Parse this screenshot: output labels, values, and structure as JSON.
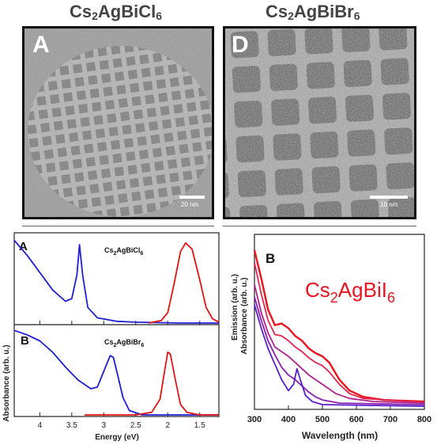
{
  "top": {
    "left": {
      "title_main": "Cs",
      "title_sub1": "2",
      "title_mid": "AgBiCl",
      "title_sub2": "6",
      "panel_letter": "A",
      "scalebar_label": "20 nm"
    },
    "right": {
      "title_main": "Cs",
      "title_sub1": "2",
      "title_mid": "AgBiBr",
      "title_sub2": "6",
      "panel_letter": "D",
      "scalebar_label": "10 nm"
    }
  },
  "bottom_left": {
    "ylabel": "Absorbance (arb. u.)",
    "xlabel": "Energy (eV)",
    "panel_A": {
      "letter": "A",
      "label_main": "Cs",
      "label_sub1": "2",
      "label_mid": "AgBiCl",
      "label_sub2": "6"
    },
    "panel_B": {
      "letter": "B",
      "label_main": "Cs",
      "label_sub1": "2",
      "label_mid": "AgBiBr",
      "label_sub2": "6"
    },
    "colors": {
      "absorbance": "#1f1fd6",
      "emission": "#e01414"
    }
  },
  "bottom_right": {
    "letter": "B",
    "ylabel_emission": "Emission (arb. u.)",
    "ylabel_absorbance": "Absorbance (arb. u.)",
    "xlabel": "Wavelength (nm)",
    "compound": {
      "main": "Cs",
      "sub1": "2",
      "mid": "AgBiI",
      "sub2": "6",
      "color": "#e8141e"
    }
  },
  "chart_data": [
    {
      "type": "line",
      "panel": "A",
      "xlabel": "Energy (eV)",
      "xlim": [
        4.4,
        1.2
      ],
      "xticks": [
        "4",
        "3.5",
        "3",
        "2.5",
        "2",
        "1.5"
      ],
      "series": [
        {
          "color": "#1f1fd6",
          "points": [
            [
              4.4,
              0.95
            ],
            [
              4.2,
              0.78
            ],
            [
              4.0,
              0.58
            ],
            [
              3.8,
              0.38
            ],
            [
              3.6,
              0.25
            ],
            [
              3.5,
              0.28
            ],
            [
              3.42,
              0.55
            ],
            [
              3.38,
              0.9
            ],
            [
              3.33,
              0.55
            ],
            [
              3.25,
              0.18
            ],
            [
              3.1,
              0.06
            ],
            [
              2.8,
              0.02
            ],
            [
              2.5,
              0.01
            ],
            [
              1.8,
              0.0
            ],
            [
              1.2,
              0.0
            ]
          ]
        },
        {
          "color": "#e01414",
          "points": [
            [
              2.3,
              0.0
            ],
            [
              2.1,
              0.03
            ],
            [
              2.0,
              0.12
            ],
            [
              1.9,
              0.45
            ],
            [
              1.8,
              0.82
            ],
            [
              1.72,
              0.92
            ],
            [
              1.62,
              0.85
            ],
            [
              1.5,
              0.5
            ],
            [
              1.4,
              0.18
            ],
            [
              1.3,
              0.05
            ],
            [
              1.2,
              0.01
            ]
          ]
        }
      ]
    },
    {
      "type": "line",
      "panel": "B",
      "xlabel": "Energy (eV)",
      "xlim": [
        4.4,
        1.2
      ],
      "xticks": [
        "4",
        "3.5",
        "3",
        "2.5",
        "2",
        "1.5"
      ],
      "series": [
        {
          "color": "#1f1fd6",
          "points": [
            [
              4.4,
              0.97
            ],
            [
              4.2,
              0.92
            ],
            [
              4.0,
              0.85
            ],
            [
              3.8,
              0.72
            ],
            [
              3.6,
              0.55
            ],
            [
              3.4,
              0.4
            ],
            [
              3.2,
              0.3
            ],
            [
              3.1,
              0.32
            ],
            [
              3.0,
              0.5
            ],
            [
              2.9,
              0.68
            ],
            [
              2.85,
              0.66
            ],
            [
              2.78,
              0.45
            ],
            [
              2.7,
              0.2
            ],
            [
              2.6,
              0.05
            ],
            [
              2.4,
              0.0
            ],
            [
              1.2,
              0.0
            ]
          ]
        },
        {
          "color": "#e01414",
          "points": [
            [
              3.3,
              0.0
            ],
            [
              2.5,
              0.0
            ],
            [
              2.25,
              0.03
            ],
            [
              2.12,
              0.18
            ],
            [
              2.05,
              0.5
            ],
            [
              2.0,
              0.72
            ],
            [
              1.96,
              0.7
            ],
            [
              1.88,
              0.4
            ],
            [
              1.8,
              0.12
            ],
            [
              1.7,
              0.03
            ],
            [
              1.5,
              0.0
            ],
            [
              1.2,
              0.0
            ]
          ]
        }
      ]
    },
    {
      "type": "line",
      "panel": "B (right)",
      "xlabel": "Wavelength (nm)",
      "ylabel": "Emission (arb. u.) / Absorbance (arb. u.)",
      "xlim": [
        300,
        800
      ],
      "xticks": [
        "300",
        "400",
        "500",
        "600",
        "700",
        "800"
      ],
      "series": [
        {
          "color": "#e8141e",
          "points": [
            [
              300,
              1.0
            ],
            [
              320,
              0.82
            ],
            [
              340,
              0.62
            ],
            [
              360,
              0.52
            ],
            [
              380,
              0.53
            ],
            [
              400,
              0.5
            ],
            [
              420,
              0.45
            ],
            [
              440,
              0.42
            ],
            [
              460,
              0.37
            ],
            [
              480,
              0.34
            ],
            [
              500,
              0.32
            ],
            [
              520,
              0.28
            ],
            [
              550,
              0.17
            ],
            [
              580,
              0.1
            ],
            [
              620,
              0.06
            ],
            [
              680,
              0.04
            ],
            [
              800,
              0.03
            ]
          ]
        },
        {
          "color": "#e02650",
          "points": [
            [
              300,
              0.92
            ],
            [
              320,
              0.72
            ],
            [
              340,
              0.55
            ],
            [
              360,
              0.46
            ],
            [
              380,
              0.45
            ],
            [
              400,
              0.42
            ],
            [
              420,
              0.38
            ],
            [
              440,
              0.35
            ],
            [
              460,
              0.31
            ],
            [
              480,
              0.28
            ],
            [
              500,
              0.26
            ],
            [
              520,
              0.22
            ],
            [
              550,
              0.14
            ],
            [
              580,
              0.08
            ],
            [
              620,
              0.05
            ],
            [
              800,
              0.025
            ]
          ]
        },
        {
          "color": "#b0208a",
          "points": [
            [
              300,
              0.78
            ],
            [
              320,
              0.6
            ],
            [
              340,
              0.47
            ],
            [
              360,
              0.38
            ],
            [
              380,
              0.35
            ],
            [
              400,
              0.32
            ],
            [
              420,
              0.28
            ],
            [
              440,
              0.24
            ],
            [
              460,
              0.2
            ],
            [
              480,
              0.17
            ],
            [
              500,
              0.14
            ],
            [
              540,
              0.08
            ],
            [
              580,
              0.05
            ],
            [
              650,
              0.03
            ],
            [
              800,
              0.02
            ]
          ]
        },
        {
          "color": "#8a1eb0",
          "points": [
            [
              300,
              0.7
            ],
            [
              320,
              0.55
            ],
            [
              340,
              0.42
            ],
            [
              360,
              0.33
            ],
            [
              380,
              0.25
            ],
            [
              400,
              0.2
            ],
            [
              420,
              0.17
            ],
            [
              440,
              0.13
            ],
            [
              460,
              0.09
            ],
            [
              480,
              0.06
            ],
            [
              500,
              0.04
            ],
            [
              550,
              0.02
            ],
            [
              800,
              0.01
            ]
          ]
        },
        {
          "color": "#5a1ecc",
          "points": [
            [
              300,
              0.65
            ],
            [
              320,
              0.5
            ],
            [
              340,
              0.37
            ],
            [
              360,
              0.27
            ],
            [
              380,
              0.17
            ],
            [
              400,
              0.1
            ],
            [
              415,
              0.14
            ],
            [
              425,
              0.24
            ],
            [
              435,
              0.17
            ],
            [
              450,
              0.07
            ],
            [
              470,
              0.03
            ],
            [
              500,
              0.01
            ],
            [
              800,
              0.0
            ]
          ]
        }
      ]
    }
  ]
}
